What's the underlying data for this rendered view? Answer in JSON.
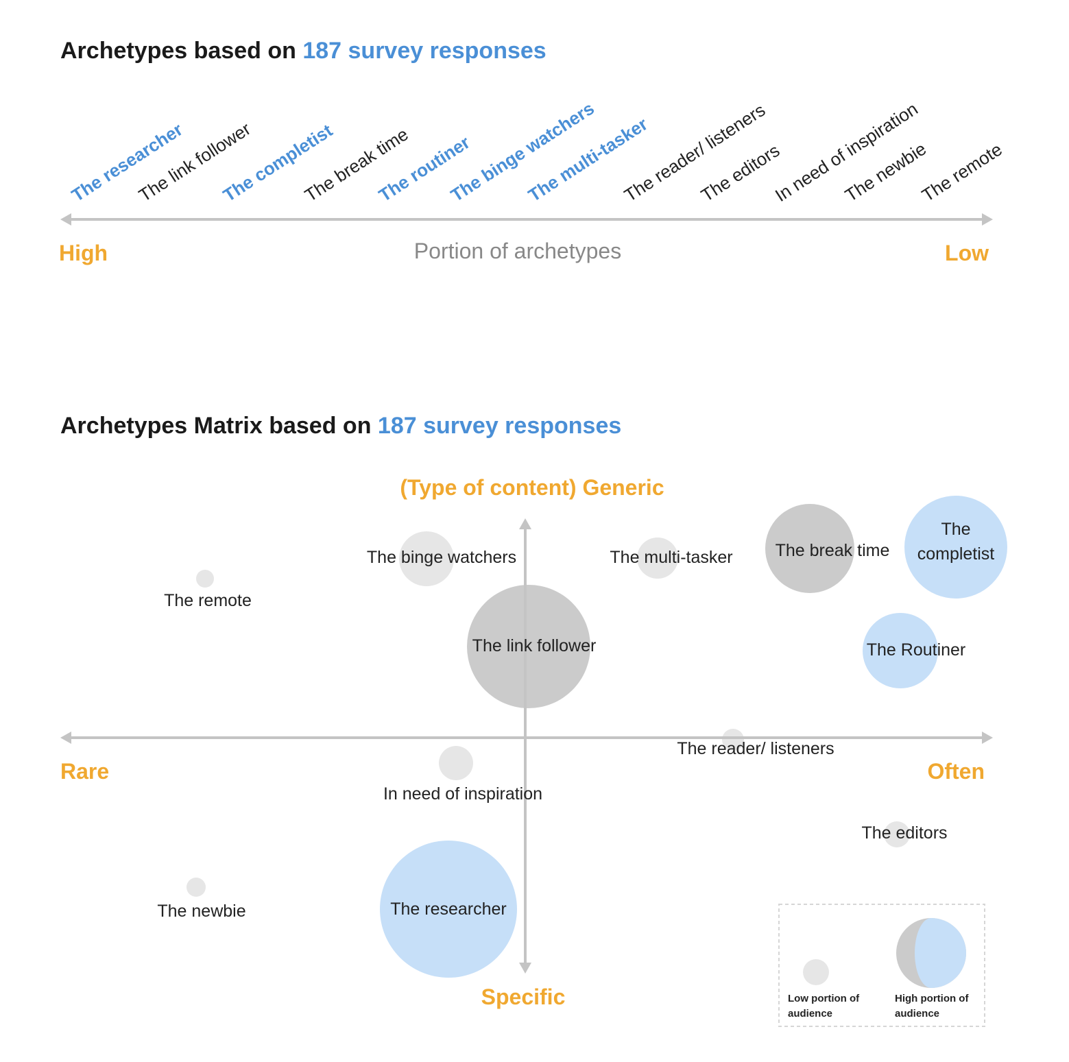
{
  "title1": {
    "prefix": "Archetypes based on ",
    "highlight": "187 survey responses"
  },
  "title2": {
    "prefix": "Archetypes Matrix based on ",
    "highlight": "187 survey responses"
  },
  "colors": {
    "accent": "#4a8fd6",
    "axis_label": "#f0a830",
    "low": "#e6e6e6",
    "high_gray": "#cbcbcb",
    "high_blue": "#c6dff8",
    "axis": "#c4c4c4"
  },
  "ranking": {
    "axis_left": "High",
    "axis_center": "Portion of archetypes",
    "axis_right": "Low",
    "items": [
      {
        "label": "The researcher",
        "highlight": true
      },
      {
        "label": "The link follower",
        "highlight": false
      },
      {
        "label": "The completist",
        "highlight": true
      },
      {
        "label": "The break time",
        "highlight": false
      },
      {
        "label": "The routiner",
        "highlight": true
      },
      {
        "label": "The binge watchers",
        "highlight": true
      },
      {
        "label": "The multi-tasker",
        "highlight": true
      },
      {
        "label": "The reader/ listeners",
        "highlight": false
      },
      {
        "label": "The editors",
        "highlight": false
      },
      {
        "label": "In need of inspiration",
        "highlight": false
      },
      {
        "label": "The newbie",
        "highlight": false
      },
      {
        "label": "The remote",
        "highlight": false
      }
    ]
  },
  "matrix": {
    "y_top": "(Type of content) Generic",
    "y_bottom": "Specific",
    "x_left": "Rare",
    "x_right": "Often",
    "legend": {
      "low_line1": "Low portion of",
      "low_line2": "audience",
      "high_line1": "High portion of",
      "high_line2": "audience"
    }
  },
  "chart_data": {
    "type": "scatter",
    "x_axis": {
      "left": "Rare",
      "right": "Often"
    },
    "y_axis": {
      "top": "(Type of content) Generic",
      "bottom": "Specific"
    },
    "points": [
      {
        "label": "The remote",
        "size": "low",
        "color": "#e6e6e6"
      },
      {
        "label": "The binge watchers",
        "size": "low",
        "color": "#e6e6e6"
      },
      {
        "label": "The multi-tasker",
        "size": "low",
        "color": "#e6e6e6"
      },
      {
        "label": "The break time",
        "size": "high",
        "color": "#cbcbcb"
      },
      {
        "label": "The completist",
        "size": "high",
        "color": "#c6dff8"
      },
      {
        "label": "The link follower",
        "size": "high",
        "color": "#cbcbcb"
      },
      {
        "label": "The Routiner",
        "size": "high",
        "color": "#c6dff8"
      },
      {
        "label": "The reader/ listeners",
        "size": "low",
        "color": "#e6e6e6"
      },
      {
        "label": "In need of inspiration",
        "size": "low",
        "color": "#e6e6e6"
      },
      {
        "label": "The editors",
        "size": "low",
        "color": "#e6e6e6"
      },
      {
        "label": "The newbie",
        "size": "low",
        "color": "#e6e6e6"
      },
      {
        "label": "The researcher",
        "size": "high",
        "color": "#c6dff8"
      }
    ]
  }
}
